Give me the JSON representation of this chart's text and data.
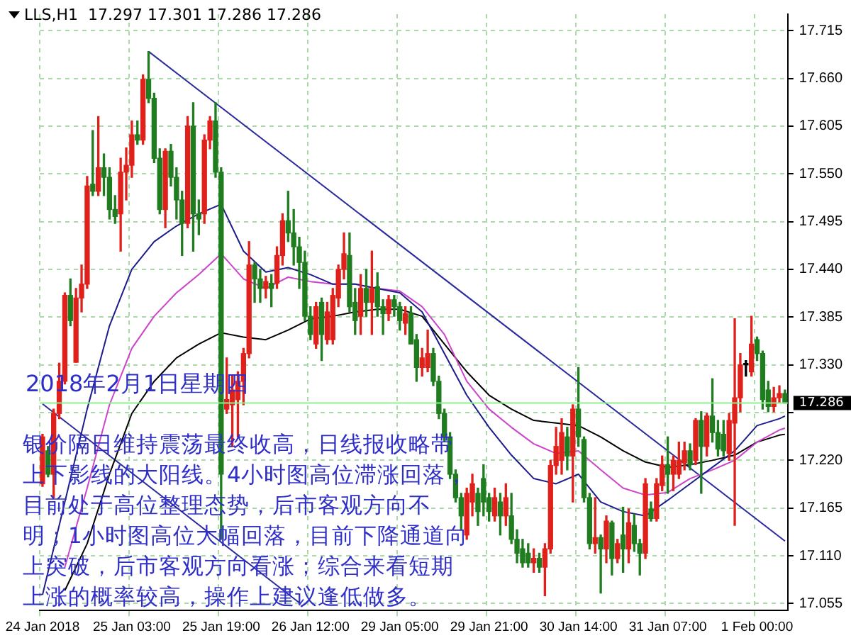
{
  "chart_data": {
    "type": "candlestick",
    "title": "LLS,H1  17.297 17.301 17.286 17.286",
    "categories": [
      "24 Jan 2018",
      null,
      null,
      null,
      null,
      null,
      null,
      null,
      null,
      null,
      null,
      null,
      null,
      null,
      null,
      null,
      "25 Jan 03:00",
      null,
      null,
      null,
      null,
      null,
      null,
      null,
      null,
      null,
      null,
      null,
      null,
      null,
      null,
      null,
      "25 Jan 19:00",
      null,
      null,
      null,
      null,
      null,
      null,
      null,
      null,
      null,
      null,
      null,
      null,
      null,
      null,
      null,
      "26 Jan 12:00",
      null,
      null,
      null,
      null,
      null,
      null,
      null,
      null,
      null,
      null,
      null,
      null,
      null,
      null,
      null,
      "29 Jan 05:00",
      null,
      null,
      null,
      null,
      null,
      null,
      null,
      null,
      null,
      null,
      null,
      null,
      null,
      null,
      null,
      "29 Jan 21:00",
      null,
      null,
      null,
      null,
      null,
      null,
      null,
      null,
      null,
      null,
      null,
      null,
      null,
      null,
      null,
      "30 Jan 14:00",
      null,
      null,
      null,
      null,
      null,
      null,
      null,
      null,
      null,
      null,
      null,
      null,
      null,
      null,
      null,
      "31 Jan 07:00",
      null,
      null,
      null,
      null,
      null,
      null,
      null,
      null,
      null,
      null,
      null,
      null,
      null,
      null,
      null,
      "1 Feb 00:00",
      null,
      null,
      null,
      null,
      null
    ],
    "series": [
      {
        "type": "candlestick",
        "ohlc": [
          [
            17.193,
            17.25,
            17.19,
            17.247
          ],
          [
            17.231,
            17.236,
            17.201,
            17.204
          ],
          [
            17.204,
            17.279,
            17.177,
            17.274
          ],
          [
            17.274,
            17.332,
            17.268,
            17.311
          ],
          [
            17.311,
            17.413,
            17.308,
            17.41
          ],
          [
            17.41,
            17.429,
            17.375,
            17.381
          ],
          [
            17.333,
            17.418,
            17.333,
            17.407
          ],
          [
            17.407,
            17.445,
            17.391,
            17.423
          ],
          [
            17.423,
            17.547,
            17.418,
            17.536
          ],
          [
            17.538,
            17.6,
            17.525,
            17.53
          ],
          [
            17.53,
            17.616,
            17.525,
            17.557
          ],
          [
            17.557,
            17.573,
            17.525,
            17.546
          ],
          [
            17.546,
            17.557,
            17.498,
            17.509
          ],
          [
            17.509,
            17.525,
            17.493,
            17.501
          ],
          [
            17.504,
            17.568,
            17.461,
            17.552
          ],
          [
            17.552,
            17.58,
            17.52,
            17.56
          ],
          [
            17.56,
            17.611,
            17.546,
            17.595
          ],
          [
            17.595,
            17.611,
            17.584,
            17.589
          ],
          [
            17.589,
            17.664,
            17.584,
            17.659
          ],
          [
            17.659,
            17.691,
            17.632,
            17.637
          ],
          [
            17.637,
            17.643,
            17.563,
            17.568
          ],
          [
            17.568,
            17.579,
            17.504,
            17.509
          ],
          [
            17.509,
            17.579,
            17.488,
            17.576
          ],
          [
            17.576,
            17.584,
            17.536,
            17.546
          ],
          [
            17.546,
            17.557,
            17.498,
            17.52
          ],
          [
            17.52,
            17.53,
            17.456,
            17.493
          ],
          [
            17.493,
            17.616,
            17.488,
            17.605
          ],
          [
            17.605,
            17.632,
            17.461,
            17.504
          ],
          [
            17.504,
            17.52,
            17.48,
            17.498
          ],
          [
            17.504,
            17.595,
            17.493,
            17.589
          ],
          [
            17.589,
            17.616,
            17.579,
            17.611
          ],
          [
            17.611,
            17.632,
            17.546,
            17.552
          ],
          [
            17.552,
            17.557,
            17.129,
            17.204
          ],
          [
            17.279,
            17.338,
            17.274,
            17.29
          ],
          [
            17.284,
            17.317,
            17.236,
            17.301
          ],
          [
            17.29,
            17.322,
            17.247,
            17.311
          ],
          [
            17.311,
            17.349,
            17.284,
            17.343
          ],
          [
            17.343,
            17.472,
            17.338,
            17.445
          ],
          [
            17.445,
            17.448,
            17.402,
            17.429
          ],
          [
            17.429,
            17.44,
            17.402,
            17.418
          ],
          [
            17.418,
            17.432,
            17.407,
            17.426
          ],
          [
            17.424,
            17.434,
            17.397,
            17.418
          ],
          [
            17.424,
            17.466,
            17.418,
            17.456
          ],
          [
            17.456,
            17.504,
            17.445,
            17.496
          ],
          [
            17.496,
            17.53,
            17.472,
            17.482
          ],
          [
            17.482,
            17.509,
            17.445,
            17.466
          ],
          [
            17.466,
            17.477,
            17.418,
            17.448
          ],
          [
            17.448,
            17.461,
            17.381,
            17.386
          ],
          [
            17.386,
            17.397,
            17.359,
            17.365
          ],
          [
            17.354,
            17.402,
            17.349,
            17.397
          ],
          [
            17.402,
            17.407,
            17.335,
            17.365
          ],
          [
            17.359,
            17.402,
            17.354,
            17.391
          ],
          [
            17.359,
            17.418,
            17.354,
            17.41
          ],
          [
            17.407,
            17.445,
            17.397,
            17.44
          ],
          [
            17.44,
            17.482,
            17.429,
            17.458
          ],
          [
            17.456,
            17.482,
            17.391,
            17.397
          ],
          [
            17.402,
            17.418,
            17.365,
            17.381
          ],
          [
            17.386,
            17.434,
            17.365,
            17.418
          ],
          [
            17.418,
            17.44,
            17.386,
            17.402
          ],
          [
            17.402,
            17.461,
            17.365,
            17.418
          ],
          [
            17.42,
            17.436,
            17.386,
            17.397
          ],
          [
            17.397,
            17.405,
            17.365,
            17.389
          ],
          [
            17.389,
            17.41,
            17.381,
            17.405
          ],
          [
            17.405,
            17.41,
            17.386,
            17.397
          ],
          [
            17.397,
            17.402,
            17.37,
            17.381
          ],
          [
            17.378,
            17.397,
            17.365,
            17.389
          ],
          [
            17.389,
            17.397,
            17.354,
            17.354
          ],
          [
            17.359,
            17.365,
            17.311,
            17.327
          ],
          [
            17.327,
            17.349,
            17.317,
            17.338
          ],
          [
            17.327,
            17.37,
            17.322,
            17.343
          ],
          [
            17.343,
            17.349,
            17.306,
            17.311
          ],
          [
            17.311,
            17.317,
            17.268,
            17.274
          ],
          [
            17.274,
            17.279,
            17.242,
            17.247
          ],
          [
            17.247,
            17.252,
            17.199,
            17.204
          ],
          [
            17.204,
            17.209,
            17.172,
            17.177
          ],
          [
            17.177,
            17.182,
            17.14,
            17.156
          ],
          [
            17.134,
            17.188,
            17.129,
            17.182
          ],
          [
            17.172,
            17.204,
            17.156,
            17.193
          ],
          [
            17.182,
            17.188,
            17.145,
            17.161
          ],
          [
            17.199,
            17.215,
            17.156,
            17.172
          ],
          [
            17.177,
            17.182,
            17.15,
            17.161
          ],
          [
            17.156,
            17.188,
            17.15,
            17.177
          ],
          [
            17.172,
            17.182,
            17.134,
            17.156
          ],
          [
            17.156,
            17.193,
            17.145,
            17.177
          ],
          [
            17.156,
            17.182,
            17.124,
            17.129
          ],
          [
            17.129,
            17.14,
            17.102,
            17.113
          ],
          [
            17.118,
            17.129,
            17.097,
            17.102
          ],
          [
            17.113,
            17.124,
            17.097,
            17.102
          ],
          [
            17.102,
            17.118,
            17.091,
            17.107
          ],
          [
            17.107,
            17.113,
            17.091,
            17.097
          ],
          [
            17.097,
            17.124,
            17.064,
            17.118
          ],
          [
            17.118,
            17.22,
            17.113,
            17.214
          ],
          [
            17.214,
            17.258,
            17.204,
            17.236
          ],
          [
            17.22,
            17.268,
            17.204,
            17.252
          ],
          [
            17.247,
            17.258,
            17.209,
            17.225
          ],
          [
            17.225,
            17.284,
            17.172,
            17.279
          ],
          [
            17.279,
            17.327,
            17.236,
            17.247
          ],
          [
            17.244,
            17.247,
            17.172,
            17.177
          ],
          [
            17.177,
            17.182,
            17.118,
            17.124
          ],
          [
            17.124,
            17.177,
            17.113,
            17.131
          ],
          [
            17.131,
            17.134,
            17.067,
            17.118
          ],
          [
            17.118,
            17.156,
            17.102,
            17.15
          ],
          [
            17.148,
            17.15,
            17.088,
            17.107
          ],
          [
            17.107,
            17.129,
            17.102,
            17.124
          ],
          [
            17.134,
            17.166,
            17.091,
            17.118
          ],
          [
            17.118,
            17.164,
            17.102,
            17.148
          ],
          [
            17.145,
            17.158,
            17.115,
            17.124
          ],
          [
            17.124,
            17.129,
            17.088,
            17.113
          ],
          [
            17.113,
            17.199,
            17.107,
            17.193
          ],
          [
            17.164,
            17.172,
            17.15,
            17.153
          ],
          [
            17.153,
            17.199,
            17.15,
            17.193
          ],
          [
            17.191,
            17.225,
            17.185,
            17.215
          ],
          [
            17.215,
            17.247,
            17.182,
            17.204
          ],
          [
            17.204,
            17.225,
            17.185,
            17.22
          ],
          [
            17.204,
            17.241,
            17.199,
            17.22
          ],
          [
            17.217,
            17.241,
            17.209,
            17.231
          ],
          [
            17.231,
            17.239,
            17.209,
            17.215
          ],
          [
            17.22,
            17.268,
            17.215,
            17.266
          ],
          [
            17.266,
            17.276,
            17.182,
            17.236
          ],
          [
            17.236,
            17.274,
            17.225,
            17.271
          ],
          [
            17.271,
            17.314,
            17.241,
            17.252
          ],
          [
            17.252,
            17.266,
            17.225,
            17.233
          ],
          [
            17.25,
            17.266,
            17.225,
            17.231
          ],
          [
            17.228,
            17.274,
            17.22,
            17.266
          ],
          [
            17.263,
            17.383,
            17.145,
            17.292
          ],
          [
            17.292,
            17.343,
            17.276,
            17.33
          ],
          [
            17.33,
            17.335,
            17.317,
            17.33
          ],
          [
            17.322,
            17.386,
            17.317,
            17.354
          ],
          [
            17.359,
            17.362,
            17.335,
            17.343
          ],
          [
            17.343,
            17.346,
            17.279,
            17.29
          ],
          [
            17.301,
            17.311,
            17.276,
            17.282
          ],
          [
            17.282,
            17.304,
            17.276,
            17.292
          ],
          [
            17.292,
            17.306,
            17.287,
            17.297
          ],
          [
            17.297,
            17.301,
            17.286,
            17.286
          ]
        ],
        "colors": [
          "#e0201a",
          "#1f7d1f",
          "#e0201a",
          "#e0201a",
          "#e0201a",
          "#1f7d1f",
          "#e0201a",
          "#e0201a",
          "#e0201a",
          "#1f7d1f",
          "#e0201a",
          "#1f7d1f",
          "#1f7d1f",
          "#1f7d1f",
          "#e0201a",
          "#e0201a",
          "#e0201a",
          "#1f7d1f",
          "#e0201a",
          "#1f7d1f",
          "#1f7d1f",
          "#1f7d1f",
          "#e0201a",
          "#1f7d1f",
          "#1f7d1f",
          "#1f7d1f",
          "#e0201a",
          "#1f7d1f",
          "#1f7d1f",
          "#e0201a",
          "#e0201a",
          "#1f7d1f",
          "#1f7d1f",
          "#e0201a",
          "#e0201a",
          "#e0201a",
          "#e0201a",
          "#e0201a",
          "#1f7d1f",
          "#1f7d1f",
          "#e0201a",
          "#1f7d1f",
          "#e0201a",
          "#e0201a",
          "#1f7d1f",
          "#1f7d1f",
          "#1f7d1f",
          "#1f7d1f",
          "#1f7d1f",
          "#e0201a",
          "#1f7d1f",
          "#e0201a",
          "#e0201a",
          "#e0201a",
          "#e0201a",
          "#1f7d1f",
          "#1f7d1f",
          "#e0201a",
          "#1f7d1f",
          "#e0201a",
          "#1f7d1f",
          "#1f7d1f",
          "#e0201a",
          "#1f7d1f",
          "#1f7d1f",
          "#e0201a",
          "#1f7d1f",
          "#1f7d1f",
          "#e0201a",
          "#e0201a",
          "#1f7d1f",
          "#1f7d1f",
          "#1f7d1f",
          "#1f7d1f",
          "#1f7d1f",
          "#1f7d1f",
          "#e0201a",
          "#e0201a",
          "#1f7d1f",
          "#1f7d1f",
          "#1f7d1f",
          "#e0201a",
          "#1f7d1f",
          "#e0201a",
          "#1f7d1f",
          "#1f7d1f",
          "#1f7d1f",
          "#1f7d1f",
          "#e0201a",
          "#1f7d1f",
          "#e0201a",
          "#e0201a",
          "#e0201a",
          "#e0201a",
          "#1f7d1f",
          "#e0201a",
          "#1f7d1f",
          "#1f7d1f",
          "#1f7d1f",
          "#e0201a",
          "#1f7d1f",
          "#e0201a",
          "#1f7d1f",
          "#e0201a",
          "#1f7d1f",
          "#e0201a",
          "#1f7d1f",
          "#1f7d1f",
          "#e0201a",
          "#1f7d1f",
          "#e0201a",
          "#e0201a",
          "#1f7d1f",
          "#e0201a",
          "#e0201a",
          "#e0201a",
          "#1f7d1f",
          "#e0201a",
          "#1f7d1f",
          "#e0201a",
          "#1f7d1f",
          "#1f7d1f",
          "#1f7d1f",
          "#e0201a",
          "#e0201a",
          "#e0201a",
          "#000000",
          "#e0201a",
          "#1f7d1f",
          "#1f7d1f",
          "#1f7d1f",
          "#e0201a",
          "#e0201a",
          "#1f7d1f"
        ]
      },
      {
        "type": "line",
        "color": "#1c1c8a",
        "values": [
          17.065,
          null,
          null,
          null,
          17.172,
          null,
          null,
          null,
          17.279,
          null,
          null,
          null,
          17.375,
          null,
          null,
          null,
          17.44,
          null,
          null,
          null,
          17.472,
          null,
          null,
          null,
          17.49,
          null,
          null,
          null,
          17.504,
          null,
          null,
          null,
          17.515,
          null,
          null,
          null,
          17.461,
          null,
          null,
          null,
          17.437,
          null,
          null,
          null,
          17.442,
          null,
          null,
          null,
          17.434,
          null,
          null,
          null,
          17.423,
          null,
          null,
          null,
          17.423,
          null,
          null,
          null,
          17.418,
          null,
          null,
          null,
          17.413,
          null,
          null,
          null,
          17.391,
          null,
          null,
          null,
          17.343,
          null,
          null,
          null,
          17.295,
          null,
          null,
          null,
          17.258,
          null,
          null,
          null,
          17.226,
          null,
          null,
          null,
          17.199,
          null,
          null,
          null,
          17.193,
          null,
          null,
          null,
          17.204,
          null,
          null,
          null,
          17.172,
          null,
          null,
          null,
          17.161,
          null,
          null,
          null,
          17.156,
          null,
          null,
          null,
          17.174,
          null,
          null,
          null,
          17.193,
          null,
          null,
          null,
          17.212,
          null,
          null,
          null,
          17.231,
          null,
          null,
          null,
          17.26,
          null,
          null,
          null,
          17.268,
          17.271
        ]
      },
      {
        "type": "line",
        "color": "#cc44cc",
        "values": [
          null,
          null,
          null,
          null,
          17.097,
          null,
          null,
          null,
          17.188,
          null,
          null,
          null,
          17.284,
          null,
          null,
          null,
          17.349,
          null,
          null,
          null,
          17.386,
          null,
          null,
          null,
          17.413,
          null,
          null,
          null,
          17.434,
          null,
          null,
          null,
          17.458,
          null,
          null,
          null,
          17.429,
          null,
          null,
          null,
          17.418,
          null,
          null,
          null,
          17.431,
          null,
          null,
          null,
          17.426,
          null,
          null,
          null,
          17.423,
          null,
          null,
          null,
          17.423,
          null,
          null,
          null,
          17.418,
          null,
          null,
          null,
          17.415,
          null,
          null,
          null,
          17.397,
          null,
          null,
          null,
          17.365,
          null,
          null,
          null,
          17.311,
          null,
          null,
          null,
          17.279,
          null,
          null,
          null,
          17.258,
          null,
          null,
          null,
          17.239,
          null,
          null,
          null,
          17.228,
          null,
          null,
          null,
          17.231,
          null,
          null,
          null,
          17.209,
          null,
          null,
          null,
          17.188,
          null,
          null,
          null,
          17.18,
          null,
          null,
          null,
          17.183,
          null,
          null,
          null,
          17.199,
          null,
          null,
          null,
          17.209,
          null,
          null,
          null,
          17.22,
          null,
          null,
          null,
          17.241,
          null,
          null,
          null,
          17.255,
          17.257
        ]
      },
      {
        "type": "line",
        "color": "#000000",
        "values": [
          null,
          null,
          null,
          null,
          17.07,
          null,
          null,
          null,
          17.124,
          null,
          null,
          null,
          17.204,
          null,
          null,
          null,
          17.274,
          null,
          null,
          null,
          17.311,
          null,
          null,
          null,
          17.338,
          null,
          null,
          null,
          17.354,
          null,
          null,
          null,
          17.367,
          null,
          null,
          null,
          17.362,
          null,
          null,
          null,
          17.359,
          null,
          null,
          null,
          17.37,
          null,
          null,
          null,
          17.383,
          null,
          null,
          null,
          17.386,
          null,
          null,
          null,
          17.391,
          null,
          null,
          null,
          17.394,
          null,
          null,
          null,
          17.394,
          null,
          null,
          null,
          17.386,
          null,
          null,
          null,
          17.354,
          null,
          null,
          null,
          17.322,
          null,
          null,
          null,
          17.295,
          null,
          null,
          null,
          17.279,
          null,
          null,
          null,
          17.266,
          null,
          null,
          null,
          17.263,
          null,
          null,
          null,
          17.26,
          null,
          null,
          null,
          17.247,
          null,
          null,
          null,
          17.231,
          null,
          null,
          null,
          17.218,
          null,
          null,
          null,
          17.212,
          null,
          null,
          null,
          17.215,
          null,
          null,
          null,
          17.22,
          null,
          null,
          null,
          17.226,
          null,
          null,
          null,
          17.241,
          null,
          null,
          null,
          17.249,
          17.25
        ]
      },
      {
        "type": "line",
        "color": "#2b2b9e",
        "values": [
          null,
          null,
          null,
          null,
          null,
          null,
          null,
          null,
          null,
          null,
          null,
          null,
          null,
          null,
          null,
          null,
          null,
          null,
          null,
          17.691,
          null,
          null,
          null,
          null,
          null,
          null,
          null,
          null,
          null,
          null,
          null,
          null,
          null,
          null,
          null,
          null,
          null,
          null,
          null,
          null,
          null,
          null,
          null,
          null,
          null,
          null,
          null,
          null,
          null,
          null,
          null,
          null,
          null,
          null,
          null,
          null,
          null,
          null,
          null,
          null,
          null,
          null,
          null,
          null,
          null,
          null,
          null,
          null,
          null,
          null,
          null,
          null,
          null,
          null,
          null,
          null,
          null,
          null,
          null,
          null,
          null,
          null,
          null,
          null,
          null,
          null,
          null,
          null,
          null,
          null,
          null,
          null,
          null,
          null,
          null,
          null,
          null,
          null,
          null,
          null,
          null,
          null,
          null,
          null,
          null,
          null,
          null,
          null,
          null,
          null,
          null,
          null,
          null,
          null,
          null,
          null,
          null,
          null,
          null,
          null,
          null,
          null,
          null,
          null,
          null,
          null,
          null,
          null,
          null,
          null,
          null,
          null,
          null,
          17.127
        ]
      },
      {
        "type": "line",
        "color": "#2b2b9e",
        "values": [
          17.285,
          null,
          null,
          null,
          null,
          null,
          null,
          null,
          null,
          null,
          null,
          null,
          null,
          null,
          null,
          null,
          null,
          null,
          null,
          null,
          null,
          null,
          null,
          null,
          null,
          null,
          null,
          null,
          null,
          null,
          null,
          null,
          null,
          null,
          null,
          null,
          null,
          null,
          null,
          null,
          null,
          null,
          null,
          null,
          null,
          null,
          17.056,
          null,
          null,
          null,
          null,
          null,
          null,
          null,
          null,
          null,
          null,
          null,
          null,
          null,
          null,
          null,
          null,
          null,
          null,
          null,
          null,
          null,
          null,
          null,
          null,
          null,
          null,
          null,
          null,
          null,
          null,
          null,
          null,
          null,
          null,
          null,
          null,
          null,
          null,
          null,
          null,
          null,
          null,
          null,
          null,
          null,
          null,
          null,
          null,
          null,
          null,
          null,
          null,
          null,
          null,
          null,
          null,
          null,
          null,
          null,
          null,
          null,
          null,
          null,
          null,
          null,
          null,
          null,
          null,
          null,
          null,
          null,
          null,
          null,
          null,
          null,
          null,
          null,
          null,
          null,
          null,
          null,
          null,
          null,
          null,
          null,
          null,
          null
        ]
      }
    ],
    "ylim": [
      17.047,
      17.734
    ],
    "yticks": [
      {
        "value": 17.055,
        "label": "17.055"
      },
      {
        "value": 17.11,
        "label": "17.110"
      },
      17.165,
      {
        "value": 17.22,
        "label": "17.220"
      },
      {
        "value": 17.275,
        "label": null
      },
      {
        "value": 17.33,
        "label": "17.330"
      },
      17.385,
      {
        "value": 17.44,
        "label": "17.440"
      },
      17.495,
      {
        "value": 17.55,
        "label": "17.550"
      },
      17.605,
      {
        "value": 17.66,
        "label": "17.660"
      },
      17.715
    ],
    "grid": true,
    "marker": "none",
    "ref_lines": [
      {
        "axis": "y",
        "value": 17.286,
        "label": "17.286",
        "color": "#90ee90"
      }
    ],
    "annotations": [
      "2018年2月1日星期四",
      "银价隔日维持震荡最终收高，日线报收略带",
      "上下影线的大阳线。4小时图高位滞涨回落，",
      "目前处于高位整理态势，后市客观方向不",
      "明；1小时图高位大幅回落，目前下降通道向",
      "上突破，后市客观方向看涨；综合来看短期",
      "上涨的概率较高，操作上建议逢低做多。"
    ]
  }
}
